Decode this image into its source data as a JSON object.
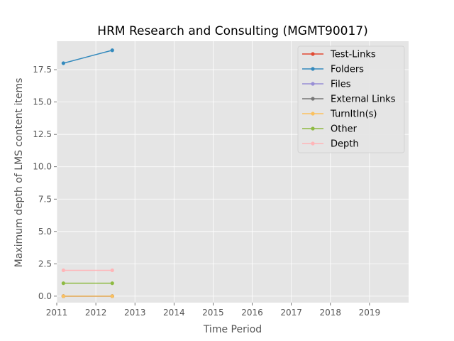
{
  "chart_data": {
    "type": "line",
    "title": "HRM Research and Consulting (MGMT90017)",
    "xlabel": "Time Period",
    "ylabel": "Maximum depth of LMS content items",
    "xlim": [
      2011,
      2020
    ],
    "ylim": [
      -0.5,
      19.7
    ],
    "x_ticks": [
      2011,
      2012,
      2013,
      2014,
      2015,
      2016,
      2017,
      2018,
      2019
    ],
    "y_ticks": [
      0.0,
      2.5,
      5.0,
      7.5,
      10.0,
      12.5,
      15.0,
      17.5
    ],
    "y_tick_labels": [
      "0.0",
      "2.5",
      "5.0",
      "7.5",
      "10.0",
      "12.5",
      "15.0",
      "17.5"
    ],
    "grid": true,
    "legend_position": "top-right",
    "x": [
      2011.17,
      2012.42
    ],
    "series": [
      {
        "name": "Test-Links",
        "color": "#E24A33",
        "values": [
          0,
          0
        ]
      },
      {
        "name": "Folders",
        "color": "#348ABD",
        "values": [
          18,
          19
        ]
      },
      {
        "name": "Files",
        "color": "#988ED5",
        "values": [
          0,
          0
        ]
      },
      {
        "name": "External Links",
        "color": "#777777",
        "values": [
          0,
          0
        ]
      },
      {
        "name": "TurnItIn(s)",
        "color": "#FBC15E",
        "values": [
          0,
          0
        ]
      },
      {
        "name": "Other",
        "color": "#8EBA42",
        "values": [
          1,
          1
        ]
      },
      {
        "name": "Depth",
        "color": "#FFB5B8",
        "values": [
          2,
          2
        ]
      }
    ]
  }
}
